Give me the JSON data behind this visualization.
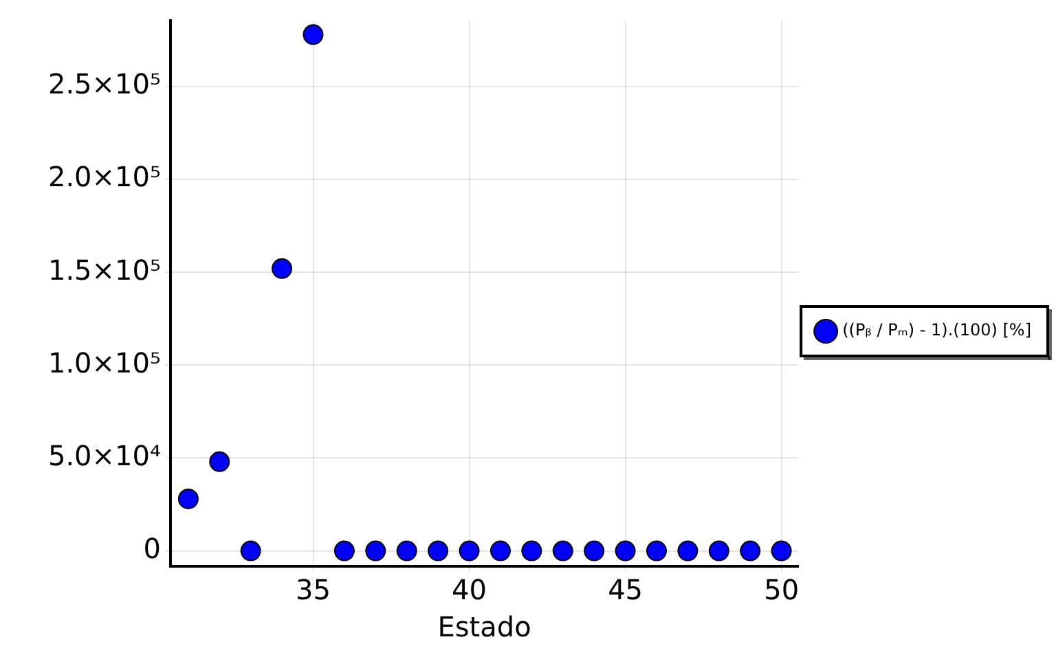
{
  "chart_data": {
    "type": "scatter",
    "xlabel": "Estado",
    "x": [
      31,
      32,
      33,
      34,
      35,
      36,
      37,
      38,
      39,
      40,
      41,
      42,
      43,
      44,
      45,
      46,
      47,
      48,
      49,
      50
    ],
    "series": [
      {
        "name": "((Pᵦ / Pₘ) - 1).(100) [%]",
        "color": "#0000ff",
        "values": [
          28000,
          48000,
          0,
          152000,
          278000,
          0,
          0,
          0,
          0,
          0,
          0,
          0,
          0,
          0,
          0,
          0,
          0,
          0,
          0,
          0
        ]
      }
    ],
    "xlim": [
      30.43,
      50.54
    ],
    "xticks": [
      35,
      40,
      45,
      50
    ],
    "ylim": [
      -8300,
      285500
    ],
    "yticks": [
      {
        "value": 0,
        "label": "0"
      },
      {
        "value": 50000,
        "label": "5.0×10⁴"
      },
      {
        "value": 100000,
        "label": "1.0×10⁵"
      },
      {
        "value": 150000,
        "label": "1.5×10⁵"
      },
      {
        "value": 200000,
        "label": "2.0×10⁵"
      },
      {
        "value": 250000,
        "label": "2.5×10⁵"
      }
    ],
    "grid": true,
    "legend": "right",
    "marker": "circle"
  }
}
